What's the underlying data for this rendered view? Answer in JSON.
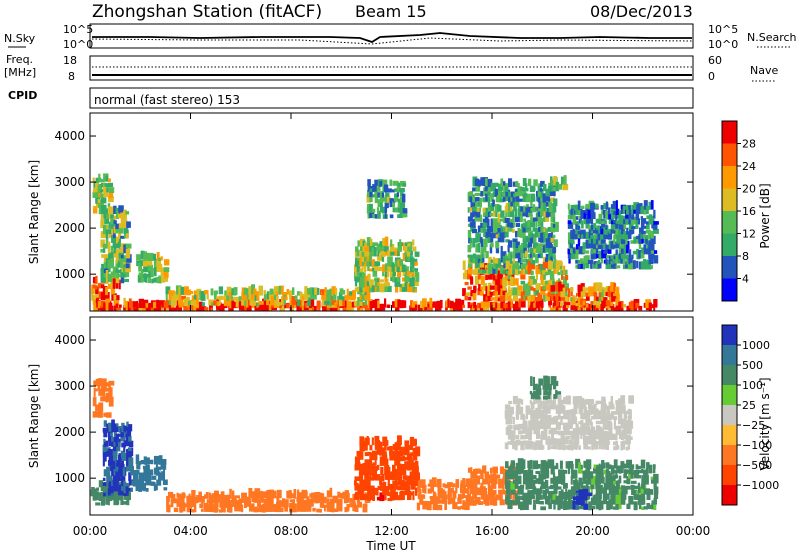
{
  "header": {
    "station": "Zhongshan Station (fitACF)",
    "beam": "Beam 15",
    "date": "08/Dec/2013"
  },
  "noise_panel": {
    "left_label": "N.Sky",
    "right_label": "N.Search",
    "left_ticks": [
      "10^5",
      "10^0"
    ],
    "right_ticks": [
      "10^5",
      "10^0"
    ]
  },
  "freq_panel": {
    "left_label_1": "Freq.",
    "left_label_2": "[MHz]",
    "right_label": "Nave",
    "left_ticks": [
      "18",
      "8"
    ],
    "right_ticks": [
      "60",
      "0"
    ]
  },
  "cpid_panel": {
    "label": "CPID",
    "text": "normal (fast stereo) 153"
  },
  "colors": {
    "power_scale": [
      "#0000ff",
      "#2255bb",
      "#33aa66",
      "#55bb55",
      "#ddbb22",
      "#ff9900",
      "#ff5500",
      "#ee0000"
    ],
    "velocity_scale": [
      "#2233bb",
      "#337799",
      "#448866",
      "#66cc33",
      "#c8c8c0",
      "#ffbb33",
      "#ff7722",
      "#ff4400",
      "#ee0000"
    ]
  },
  "chart_data": [
    {
      "type": "heatmap",
      "name": "power",
      "ylabel": "Slant Range [km]",
      "yticks": [
        "1000",
        "2000",
        "3000",
        "4000"
      ],
      "ylim": [
        200,
        4500
      ],
      "xlim": [
        0,
        24
      ],
      "xticks": [
        "00:00",
        "04:00",
        "08:00",
        "12:00",
        "16:00",
        "20:00",
        "00:00"
      ],
      "colorbar_label": "Power [dB]",
      "colorbar_ticks": [
        "4",
        "8",
        "12",
        "16",
        "20",
        "24",
        "28"
      ],
      "colorbar_range": [
        0,
        30
      ],
      "regions": [
        {
          "x": [
            0.0,
            1.2
          ],
          "y": [
            300,
            900
          ],
          "v": 24
        },
        {
          "x": [
            0.1,
            0.8
          ],
          "y": [
            2300,
            3100
          ],
          "v": 14
        },
        {
          "x": [
            0.4,
            1.5
          ],
          "y": [
            800,
            2400
          ],
          "v": 12
        },
        {
          "x": [
            1.8,
            3.0
          ],
          "y": [
            800,
            1400
          ],
          "v": 14
        },
        {
          "x": [
            0.0,
            22.5
          ],
          "y": [
            200,
            320
          ],
          "v": 28
        },
        {
          "x": [
            3.0,
            11.0
          ],
          "y": [
            300,
            650
          ],
          "v": 16
        },
        {
          "x": [
            10.5,
            13.0
          ],
          "y": [
            600,
            1700
          ],
          "v": 14
        },
        {
          "x": [
            11.0,
            12.5
          ],
          "y": [
            2200,
            3000
          ],
          "v": 10
        },
        {
          "x": [
            14.8,
            16.8
          ],
          "y": [
            400,
            1200
          ],
          "v": 24
        },
        {
          "x": [
            15.0,
            18.5
          ],
          "y": [
            1000,
            3000
          ],
          "v": 10
        },
        {
          "x": [
            16.5,
            19.0
          ],
          "y": [
            400,
            1200
          ],
          "v": 18
        },
        {
          "x": [
            18.2,
            21.0
          ],
          "y": [
            300,
            700
          ],
          "v": 22
        },
        {
          "x": [
            19.0,
            22.5
          ],
          "y": [
            1100,
            2500
          ],
          "v": 8
        },
        {
          "x": [
            18.3,
            18.9
          ],
          "y": [
            2800,
            3050
          ],
          "v": 14
        }
      ]
    },
    {
      "type": "heatmap",
      "name": "velocity",
      "ylabel": "Slant Range [km]",
      "yticks": [
        "1000",
        "2000",
        "3000",
        "4000"
      ],
      "ylim": [
        200,
        4500
      ],
      "xlim": [
        0,
        24
      ],
      "xlabel": "Time UT",
      "xticks": [
        "00:00",
        "04:00",
        "08:00",
        "12:00",
        "16:00",
        "20:00",
        "00:00"
      ],
      "colorbar_label": "Velocity [m s⁻¹]",
      "colorbar_ticks": [
        "1000",
        "500",
        "100",
        "25",
        "−25",
        "−100",
        "−500",
        "−1000"
      ],
      "colorbar_range": [
        -1000,
        1000
      ],
      "regions": [
        {
          "x": [
            0.0,
            1.5
          ],
          "y": [
            400,
            900
          ],
          "v": 100
        },
        {
          "x": [
            0.1,
            0.8
          ],
          "y": [
            2300,
            3100
          ],
          "v": -300
        },
        {
          "x": [
            0.5,
            1.6
          ],
          "y": [
            600,
            2200
          ],
          "v": 800
        },
        {
          "x": [
            1.6,
            3.0
          ],
          "y": [
            700,
            1400
          ],
          "v": 600
        },
        {
          "x": [
            3.0,
            11.0
          ],
          "y": [
            250,
            650
          ],
          "v": -300
        },
        {
          "x": [
            10.5,
            13.0
          ],
          "y": [
            500,
            1800
          ],
          "v": -600
        },
        {
          "x": [
            13.0,
            15.0
          ],
          "y": [
            300,
            900
          ],
          "v": -300
        },
        {
          "x": [
            15.0,
            17.0
          ],
          "y": [
            400,
            1200
          ],
          "v": -300
        },
        {
          "x": [
            16.5,
            22.5
          ],
          "y": [
            300,
            1300
          ],
          "v": 80
        },
        {
          "x": [
            16.5,
            21.5
          ],
          "y": [
            1600,
            2700
          ],
          "v": 0
        },
        {
          "x": [
            17.5,
            18.6
          ],
          "y": [
            2700,
            3100
          ],
          "v": 150
        },
        {
          "x": [
            19.2,
            19.9
          ],
          "y": [
            300,
            700
          ],
          "v": 900
        }
      ]
    }
  ]
}
